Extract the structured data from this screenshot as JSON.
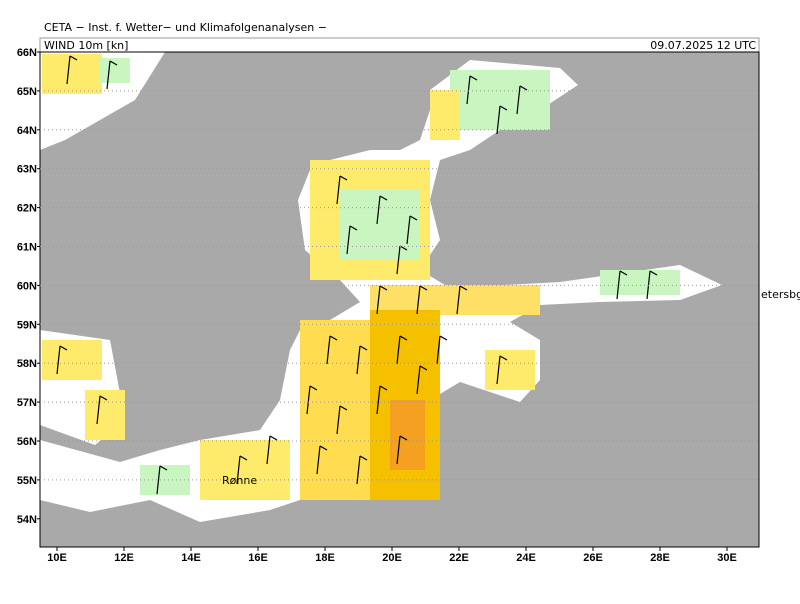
{
  "header": {
    "institute": "CETA − Inst. f. Wetter− und Klimafolgenanalysen −",
    "field": "WIND 10m [kn]",
    "datetime": "09.07.2025 12 UTC"
  },
  "map": {
    "lat_labels": [
      "66N",
      "65N",
      "64N",
      "63N",
      "62N",
      "61N",
      "60N",
      "59N",
      "58N",
      "57N",
      "56N",
      "55N",
      "54N"
    ],
    "lon_labels": [
      "10E",
      "12E",
      "14E",
      "16E",
      "18E",
      "20E",
      "22E",
      "24E",
      "26E",
      "28E",
      "30E"
    ],
    "place_labels": [
      "etersbg",
      "Rønne"
    ]
  }
}
